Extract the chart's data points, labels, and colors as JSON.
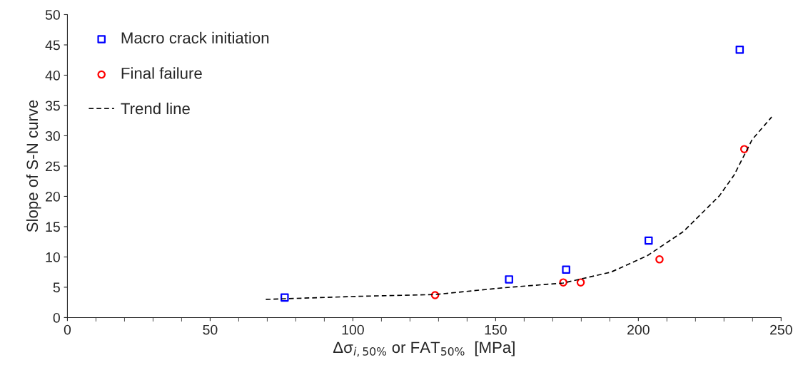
{
  "chart_data": {
    "type": "scatter",
    "xlabel": "Δσ$_{i,50%}$ or FAT$_{50%}$  [MPa]",
    "ylabel": "Slope of S-N curve",
    "xlim": [
      0,
      250
    ],
    "ylim": [
      0,
      50
    ],
    "xticks": [
      0,
      50,
      100,
      150,
      200,
      250
    ],
    "yticks": [
      0,
      5,
      10,
      15,
      20,
      25,
      30,
      35,
      40,
      45,
      50
    ],
    "grid": false,
    "legend": "top left",
    "series": [
      {
        "name": "Macro crack initiation",
        "marker": "square",
        "color": "#0000ff",
        "x": [
          76.1,
          154.7,
          174.7,
          203.6,
          235.5
        ],
        "values": [
          3.3,
          6.3,
          7.9,
          12.7,
          44.2
        ]
      },
      {
        "name": "Final failure",
        "marker": "circle",
        "color": "#ff0000",
        "x": [
          128.8,
          173.7,
          179.8,
          207.4,
          237.1
        ],
        "values": [
          3.7,
          5.8,
          5.8,
          9.6,
          27.8
        ]
      },
      {
        "name": "Trend line",
        "type": "line",
        "line_style": "dashed",
        "marker": "none",
        "color": "#000000",
        "x": [
          69.5,
          101.7,
          128.8,
          152.4,
          173.7,
          190.4,
          203.1,
          215.8,
          228.4,
          233.5,
          239.9,
          246.7
        ],
        "values": [
          3.0,
          3.5,
          3.8,
          4.9,
          5.7,
          7.5,
          10.2,
          14.2,
          20.1,
          23.5,
          29.4,
          33.1
        ]
      }
    ]
  }
}
